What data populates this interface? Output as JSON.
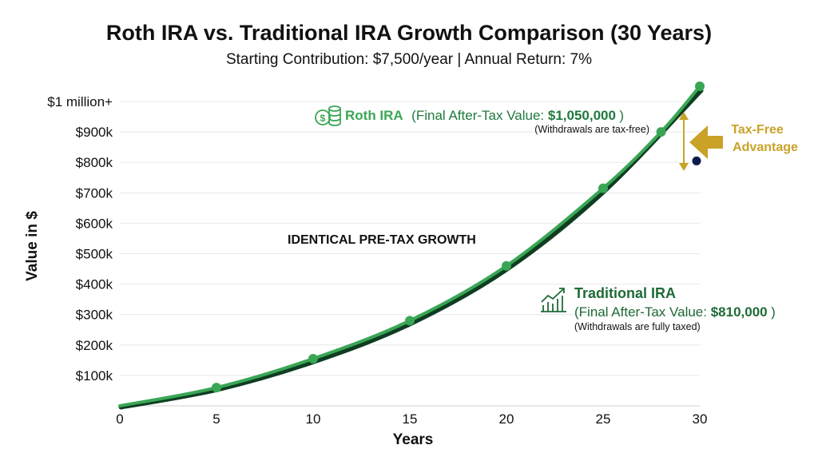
{
  "title": "Roth IRA vs. Traditional IRA Growth Comparison (30 Years)",
  "subtitle": "Starting Contribution: $7,500/year | Annual Return: 7%",
  "colors": {
    "roth": "#3aa655",
    "traditional": "#0f3d22",
    "gold": "#c9a227",
    "navy": "#0d1b4a",
    "grid": "#e8e8e8"
  },
  "chart_data": {
    "type": "line",
    "xlabel": "Years",
    "ylabel": "Value in $",
    "xlim": [
      0,
      30
    ],
    "ylim": [
      0,
      1050000
    ],
    "x_ticks": [
      0,
      5,
      10,
      15,
      20,
      25,
      30
    ],
    "y_ticks": [
      {
        "value": 100000,
        "label": "$100k"
      },
      {
        "value": 200000,
        "label": "$200k"
      },
      {
        "value": 300000,
        "label": "$300k"
      },
      {
        "value": 400000,
        "label": "$400k"
      },
      {
        "value": 500000,
        "label": "$500k"
      },
      {
        "value": 600000,
        "label": "$600k"
      },
      {
        "value": 700000,
        "label": "$700k"
      },
      {
        "value": 800000,
        "label": "$800k"
      },
      {
        "value": 900000,
        "label": "$900k"
      },
      {
        "value": 1000000,
        "label": "$1 million+"
      }
    ],
    "grid": true,
    "series": [
      {
        "name": "Roth IRA",
        "x": [
          0,
          5,
          10,
          15,
          20,
          25,
          28,
          30
        ],
        "y": [
          0,
          60000,
          155000,
          280000,
          460000,
          715000,
          900000,
          1050000
        ]
      },
      {
        "name": "Traditional IRA",
        "x": [
          0,
          5,
          10,
          15,
          20,
          25,
          30
        ],
        "y": [
          0,
          58000,
          150000,
          275000,
          455000,
          710000,
          1040000
        ]
      }
    ],
    "traditional_after_tax_point": {
      "x": 30,
      "y": 810000
    },
    "annotations": {
      "middle": "IDENTICAL PRE-TAX GROWTH",
      "roth_name": "Roth IRA",
      "roth_detail_prefix": "(Final After-Tax Value: ",
      "roth_value": "$1,050,000",
      "roth_detail_suffix": ")",
      "roth_note": "(Withdrawals are tax-free)",
      "trad_name": "Traditional IRA",
      "trad_detail_prefix": "(Final After-Tax Value: ",
      "trad_value": "$810,000",
      "trad_detail_suffix": ")",
      "trad_note": "(Withdrawals are fully taxed)",
      "advantage_line1": "Tax-Free",
      "advantage_line2": "Advantage"
    },
    "icons": [
      "coins-icon",
      "growth-chart-icon",
      "arrow-left-icon"
    ]
  }
}
